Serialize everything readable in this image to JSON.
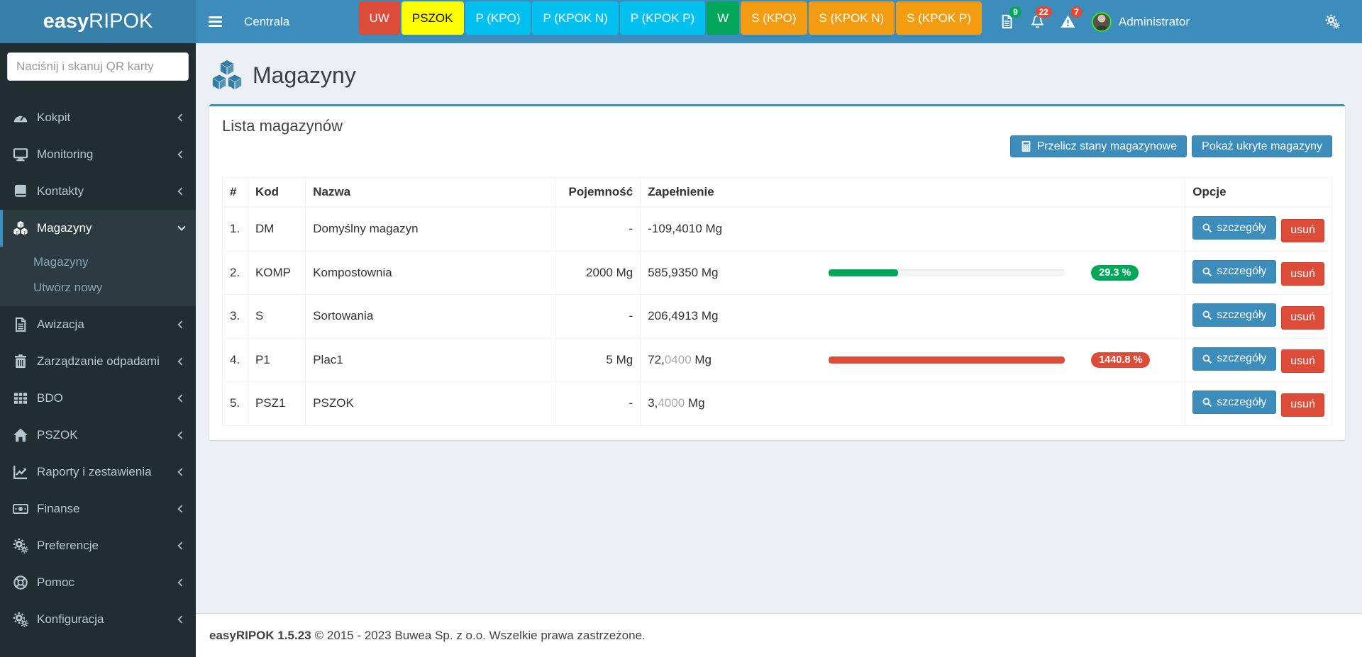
{
  "navbar": {
    "brand": {
      "bold": "easy",
      "regular": "RIPOK"
    },
    "context_label": "Centrala",
    "tabs": [
      {
        "label": "UW",
        "bg": "#dd4b39",
        "fg": "#ffffff"
      },
      {
        "label": "PSZOK",
        "bg": "#ffff00",
        "fg": "#111111"
      },
      {
        "label": "P (KPO)",
        "bg": "#00c0ef",
        "fg": "#ffffff"
      },
      {
        "label": "P (KPOK N)",
        "bg": "#00c0ef",
        "fg": "#ffffff"
      },
      {
        "label": "P (KPOK P)",
        "bg": "#00c0ef",
        "fg": "#ffffff"
      },
      {
        "label": "W",
        "bg": "#00a65a",
        "fg": "#ffffff"
      },
      {
        "label": "S (KPO)",
        "bg": "#f39c12",
        "fg": "#ffffff"
      },
      {
        "label": "S (KPOK N)",
        "bg": "#f39c12",
        "fg": "#ffffff"
      },
      {
        "label": "S (KPOK P)",
        "bg": "#f39c12",
        "fg": "#ffffff"
      }
    ],
    "notifications": [
      {
        "icon": "file-text",
        "count": "9",
        "badge_color": "#00a65a"
      },
      {
        "icon": "bell",
        "count": "22",
        "badge_color": "#dd4b39"
      },
      {
        "icon": "warning",
        "count": "7",
        "badge_color": "#dd4b39"
      }
    ],
    "user": {
      "name": "Administrator"
    },
    "settings_icon": "gears"
  },
  "sidebar": {
    "search_placeholder": "Naciśnij i skanuj QR karty",
    "items": [
      {
        "label": "Kokpit",
        "icon": "tachometer"
      },
      {
        "label": "Monitoring",
        "icon": "desktop"
      },
      {
        "label": "Kontakty",
        "icon": "book"
      },
      {
        "label": "Magazyny",
        "icon": "cubes",
        "active": true,
        "children": [
          "Magazyny",
          "Utwórz nowy"
        ]
      },
      {
        "label": "Awizacja",
        "icon": "file-text"
      },
      {
        "label": "Zarządzanie odpadami",
        "icon": "trash"
      },
      {
        "label": "BDO",
        "icon": "table"
      },
      {
        "label": "PSZOK",
        "icon": "home"
      },
      {
        "label": "Raporty i zestawienia",
        "icon": "chart-line"
      },
      {
        "label": "Finanse",
        "icon": "money"
      },
      {
        "label": "Preferencje",
        "icon": "gears"
      },
      {
        "label": "Pomoc",
        "icon": "life-ring"
      },
      {
        "label": "Konfiguracja",
        "icon": "gears"
      }
    ]
  },
  "page": {
    "title": "Magazyny",
    "title_icon": "cubes"
  },
  "box": {
    "title": "Lista magazynów",
    "buttons": [
      {
        "label": "Przelicz stany magazynowe",
        "icon": "calculator"
      },
      {
        "label": "Pokaż ukryte magazyny"
      }
    ],
    "table": {
      "headers": [
        "#",
        "Kod",
        "Nazwa",
        "Pojemność",
        "Zapełnienie",
        "Opcje"
      ],
      "row_buttons": {
        "details": "szczegóły",
        "delete": "usuń"
      },
      "rows": [
        {
          "num": "1.",
          "kod": "DM",
          "nazwa": "Domyślny magazyn",
          "pojemnosc": "-",
          "zap_main": "-109,4010",
          "zap_light": "",
          "zap_unit": " Mg",
          "progress": null
        },
        {
          "num": "2.",
          "kod": "KOMP",
          "nazwa": "Kompostownia",
          "pojemnosc": "2000 Mg",
          "zap_main": "585,9350",
          "zap_light": "",
          "zap_unit": " Mg",
          "progress": {
            "percent": 29.3,
            "label": "29.3 %",
            "color": "#00a65a"
          }
        },
        {
          "num": "3.",
          "kod": "S",
          "nazwa": "Sortowania",
          "pojemnosc": "-",
          "zap_main": "206,4913",
          "zap_light": "",
          "zap_unit": " Mg",
          "progress": null
        },
        {
          "num": "4.",
          "kod": "P1",
          "nazwa": "Plac1",
          "pojemnosc": "5 Mg",
          "zap_main": "72,",
          "zap_light": "0400",
          "zap_unit": " Mg",
          "progress": {
            "percent": 100,
            "label": "1440.8 %",
            "color": "#dd4b39"
          }
        },
        {
          "num": "5.",
          "kod": "PSZ1",
          "nazwa": "PSZOK",
          "pojemnosc": "-",
          "zap_main": "3,",
          "zap_light": "4000",
          "zap_unit": " Mg",
          "progress": null
        }
      ]
    }
  },
  "footer": {
    "version": "easyRIPOK 1.5.23",
    "text": "© 2015 - 2023 Buwea Sp. z o.o. Wszelkie prawa zastrzeżone."
  },
  "colors": {
    "navbar": "#3c8dbc",
    "brand_bg": "#367fa9",
    "sidebar": "#222d32",
    "sidebar_active": "#2c3b41",
    "content_bg": "#ecf0f5",
    "accent": "#3c8dbc",
    "danger": "#dd4b39",
    "success": "#00a65a",
    "progress_track": "#f5f5f5"
  }
}
